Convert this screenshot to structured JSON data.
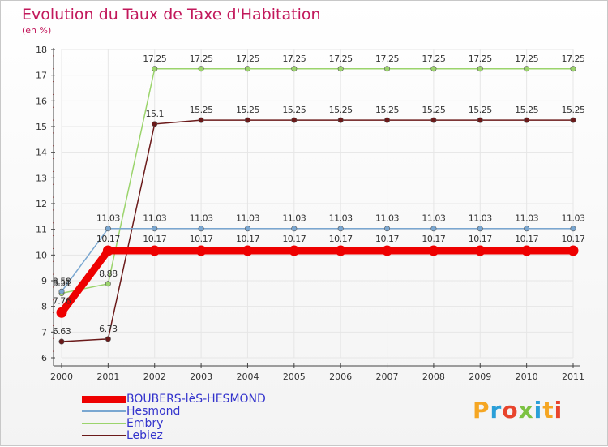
{
  "title": "Evolution du Taux de Taxe d'Habitation",
  "subtitle": "(en %)",
  "logo": {
    "text": "Proxiti",
    "colors": [
      "#f5a623",
      "#2a9fd8",
      "#e8442c",
      "#7cc242",
      "#2a9fd8",
      "#f5a623",
      "#e8442c"
    ]
  },
  "chart_data": {
    "type": "line",
    "title": "Evolution du Taux de Taxe d'Habitation",
    "ylabel": "(en %)",
    "xlabel": "",
    "ylim": [
      6,
      18
    ],
    "yticks": [
      "6",
      "7",
      "8",
      "9",
      "10",
      "11",
      "12",
      "13",
      "14",
      "15",
      "16",
      "17",
      "18"
    ],
    "x": [
      "2000",
      "2001",
      "2002",
      "2003",
      "2004",
      "2005",
      "2006",
      "2007",
      "2008",
      "2009",
      "2010",
      "2011"
    ],
    "series": [
      {
        "name": "BOUBERS-lèS-HESMOND",
        "color": "#ee0000",
        "values": [
          7.76,
          10.17,
          10.17,
          10.17,
          10.17,
          10.17,
          10.17,
          10.17,
          10.17,
          10.17,
          10.17,
          10.17
        ],
        "labels": [
          "7.76",
          "10.17",
          "10.17",
          "10.17",
          "10.17",
          "10.17",
          "10.17",
          "10.17",
          "10.17",
          "10.17",
          "10.17",
          "10.17"
        ]
      },
      {
        "name": "Hesmond",
        "color": "#7aa7d1",
        "values": [
          8.58,
          11.03,
          11.03,
          11.03,
          11.03,
          11.03,
          11.03,
          11.03,
          11.03,
          11.03,
          11.03,
          11.03
        ],
        "labels": [
          "8.58",
          "11.03",
          "11.03",
          "11.03",
          "11.03",
          "11.03",
          "11.03",
          "11.03",
          "11.03",
          "11.03",
          "11.03",
          "11.03"
        ]
      },
      {
        "name": "Embry",
        "color": "#9bd46c",
        "values": [
          8.51,
          8.88,
          17.25,
          17.25,
          17.25,
          17.25,
          17.25,
          17.25,
          17.25,
          17.25,
          17.25,
          17.25
        ],
        "labels": [
          "8.51",
          "8.88",
          "17.25",
          "17.25",
          "17.25",
          "17.25",
          "17.25",
          "17.25",
          "17.25",
          "17.25",
          "17.25",
          "17.25"
        ]
      },
      {
        "name": "Lebiez",
        "color": "#6b1a1a",
        "values": [
          6.63,
          6.73,
          15.1,
          15.25,
          15.25,
          15.25,
          15.25,
          15.25,
          15.25,
          15.25,
          15.25,
          15.25
        ],
        "labels": [
          "6.63",
          "6.73",
          "15.1",
          "15.25",
          "15.25",
          "15.25",
          "15.25",
          "15.25",
          "15.25",
          "15.25",
          "15.25",
          "15.25"
        ]
      }
    ],
    "legend_position": "bottom-left"
  }
}
